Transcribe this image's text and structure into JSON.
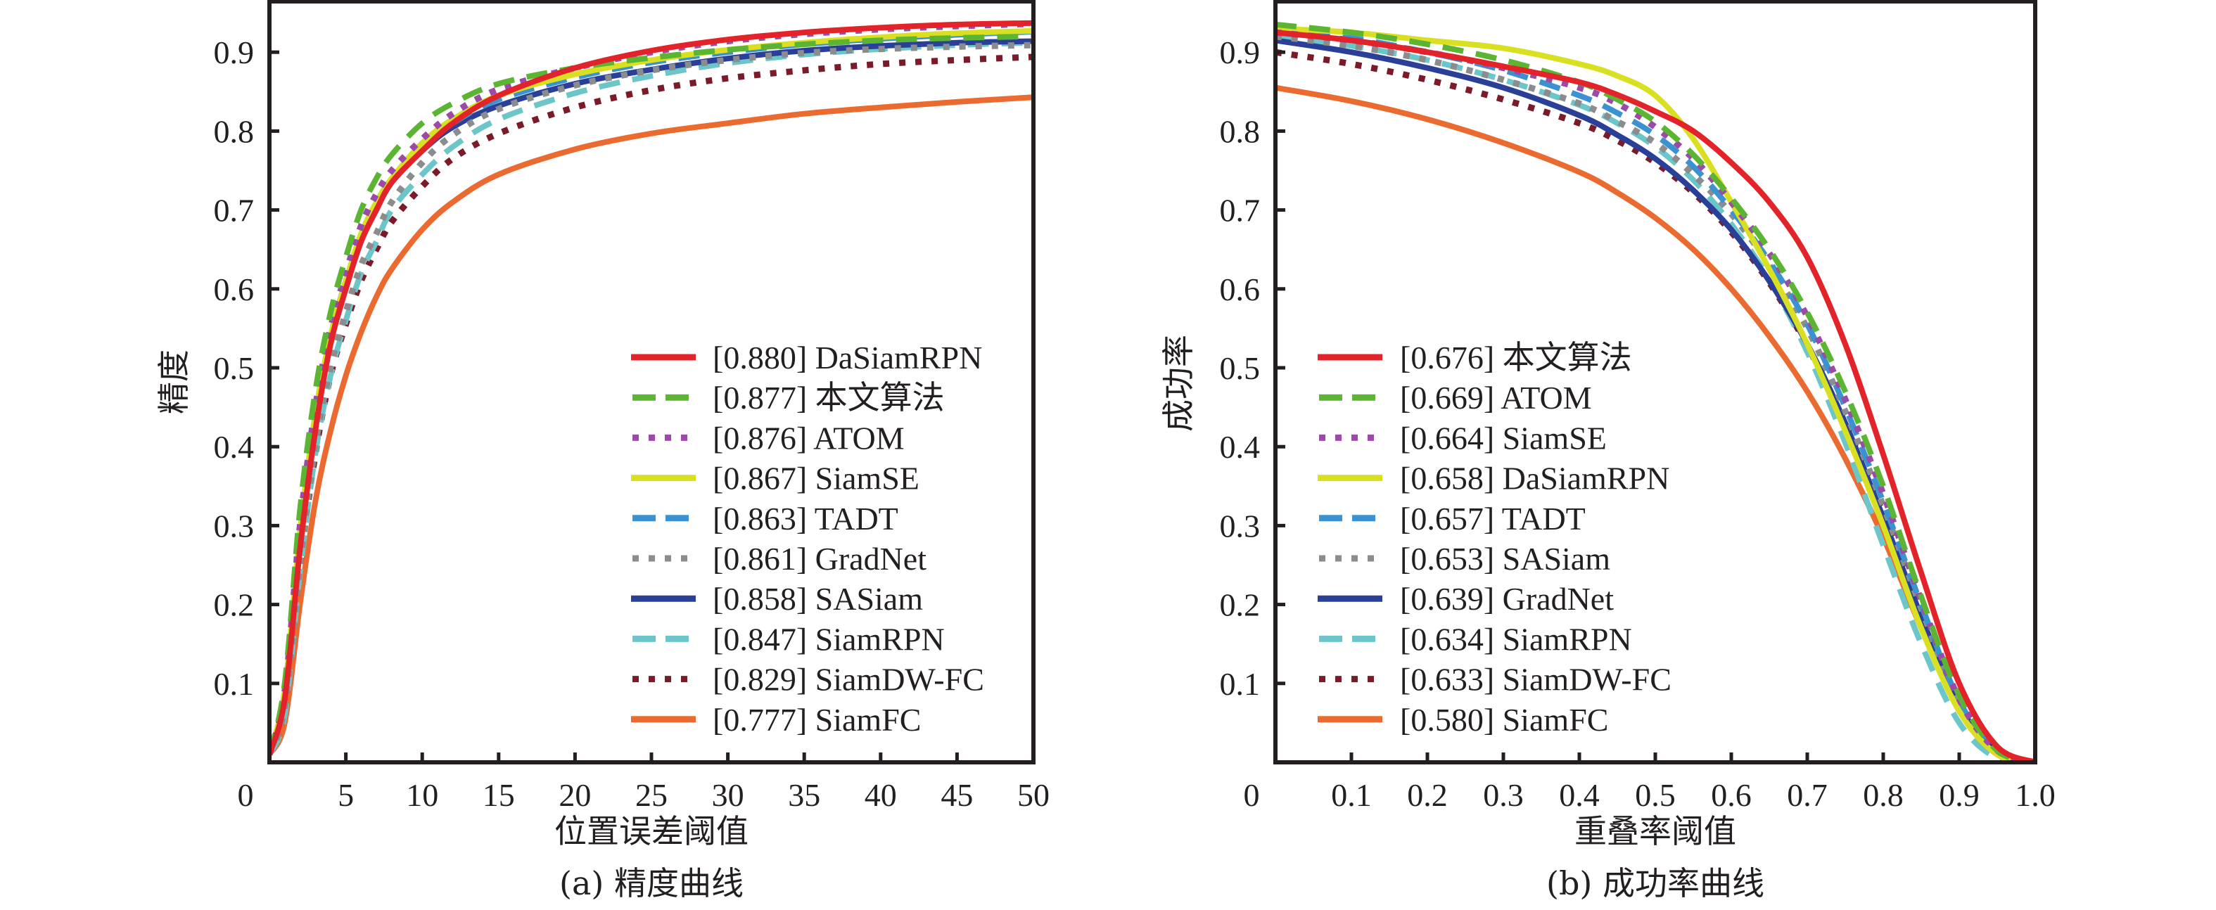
{
  "chart_data": [
    {
      "type": "line",
      "id": "precision",
      "caption": "(a) 精度曲线",
      "xlabel": "位置误差阈值",
      "ylabel": "精度",
      "xlim": [
        0,
        50
      ],
      "ylim": [
        0,
        0.965
      ],
      "xticks": [
        0,
        5,
        10,
        15,
        20,
        25,
        30,
        35,
        40,
        45,
        50
      ],
      "xtick_labels": [
        "0",
        "5",
        "10",
        "15",
        "20",
        "25",
        "30",
        "35",
        "40",
        "45",
        "50"
      ],
      "yticks": [
        0.1,
        0.2,
        0.3,
        0.4,
        0.5,
        0.6,
        0.7,
        0.8,
        0.9
      ],
      "ytick_labels": [
        "0.1",
        "0.2",
        "0.3",
        "0.4",
        "0.5",
        "0.6",
        "0.7",
        "0.8",
        "0.9"
      ],
      "grid": false,
      "legend_position": "bottom-right",
      "x": [
        0,
        1,
        2,
        3,
        4,
        5,
        6,
        7,
        8,
        10,
        12,
        15,
        20,
        25,
        30,
        35,
        40,
        45,
        50
      ],
      "series": [
        {
          "name": "DaSiamRPN",
          "score": "0.880",
          "color": "#e3232a",
          "style": "solid",
          "values": [
            0.01,
            0.08,
            0.27,
            0.42,
            0.53,
            0.6,
            0.66,
            0.7,
            0.735,
            0.775,
            0.81,
            0.845,
            0.88,
            0.902,
            0.916,
            0.925,
            0.931,
            0.935,
            0.937
          ]
        },
        {
          "name": "本文算法",
          "score": "0.877",
          "color": "#5bb533",
          "style": "dashed",
          "values": [
            0.01,
            0.1,
            0.32,
            0.47,
            0.57,
            0.64,
            0.7,
            0.74,
            0.77,
            0.81,
            0.835,
            0.86,
            0.88,
            0.893,
            0.903,
            0.91,
            0.915,
            0.918,
            0.92
          ]
        },
        {
          "name": "ATOM",
          "score": "0.876",
          "color": "#9b4aa8",
          "style": "dotted",
          "values": [
            0.01,
            0.09,
            0.3,
            0.45,
            0.55,
            0.62,
            0.68,
            0.72,
            0.75,
            0.79,
            0.822,
            0.853,
            0.88,
            0.9,
            0.914,
            0.923,
            0.929,
            0.933,
            0.936
          ]
        },
        {
          "name": "SiamSE",
          "score": "0.867",
          "color": "#d9e021",
          "style": "solid",
          "values": [
            0.01,
            0.09,
            0.29,
            0.44,
            0.54,
            0.61,
            0.67,
            0.71,
            0.74,
            0.785,
            0.815,
            0.845,
            0.872,
            0.89,
            0.903,
            0.912,
            0.919,
            0.924,
            0.927
          ]
        },
        {
          "name": "TADT",
          "score": "0.863",
          "color": "#3a93d0",
          "style": "dashed",
          "values": [
            0.01,
            0.085,
            0.28,
            0.43,
            0.53,
            0.6,
            0.66,
            0.7,
            0.735,
            0.78,
            0.81,
            0.84,
            0.868,
            0.887,
            0.9,
            0.91,
            0.917,
            0.922,
            0.926
          ]
        },
        {
          "name": "GradNet",
          "score": "0.861",
          "color": "#8a8c8e",
          "style": "dotted",
          "values": [
            0.01,
            0.07,
            0.25,
            0.4,
            0.5,
            0.57,
            0.63,
            0.67,
            0.71,
            0.76,
            0.795,
            0.828,
            0.858,
            0.877,
            0.89,
            0.899,
            0.904,
            0.907,
            0.909
          ]
        },
        {
          "name": "SASiam",
          "score": "0.858",
          "color": "#2a3f98",
          "style": "solid",
          "values": [
            0.01,
            0.09,
            0.29,
            0.44,
            0.54,
            0.61,
            0.665,
            0.705,
            0.735,
            0.775,
            0.805,
            0.832,
            0.86,
            0.878,
            0.892,
            0.902,
            0.908,
            0.912,
            0.914
          ]
        },
        {
          "name": "SiamRPN",
          "score": "0.847",
          "color": "#6cc6c9",
          "style": "dashed",
          "values": [
            0.01,
            0.06,
            0.24,
            0.39,
            0.49,
            0.56,
            0.62,
            0.66,
            0.7,
            0.745,
            0.78,
            0.815,
            0.848,
            0.87,
            0.886,
            0.897,
            0.904,
            0.909,
            0.912
          ]
        },
        {
          "name": "SiamDW-FC",
          "score": "0.829",
          "color": "#7b1b2a",
          "style": "dotted",
          "values": [
            0.01,
            0.07,
            0.25,
            0.39,
            0.49,
            0.555,
            0.61,
            0.65,
            0.685,
            0.73,
            0.765,
            0.797,
            0.83,
            0.852,
            0.867,
            0.877,
            0.885,
            0.89,
            0.894
          ]
        },
        {
          "name": "SiamFC",
          "score": "0.777",
          "color": "#ea6a30",
          "style": "solid",
          "values": [
            0.01,
            0.05,
            0.2,
            0.33,
            0.42,
            0.49,
            0.545,
            0.59,
            0.625,
            0.675,
            0.71,
            0.745,
            0.777,
            0.797,
            0.81,
            0.822,
            0.83,
            0.837,
            0.843
          ]
        }
      ]
    },
    {
      "type": "line",
      "id": "success",
      "caption": "(b) 成功率曲线",
      "xlabel": "重叠率阈值",
      "ylabel": "成功率",
      "xlim": [
        0,
        1.0
      ],
      "ylim": [
        0,
        0.965
      ],
      "xticks": [
        0,
        0.1,
        0.2,
        0.3,
        0.4,
        0.5,
        0.6,
        0.7,
        0.8,
        0.9,
        1.0
      ],
      "xtick_labels": [
        "0",
        "0.1",
        "0.2",
        "0.3",
        "0.4",
        "0.5",
        "0.6",
        "0.7",
        "0.8",
        "0.9",
        "1.0"
      ],
      "yticks": [
        0.1,
        0.2,
        0.3,
        0.4,
        0.5,
        0.6,
        0.7,
        0.8,
        0.9
      ],
      "ytick_labels": [
        "0.1",
        "0.2",
        "0.3",
        "0.4",
        "0.5",
        "0.6",
        "0.7",
        "0.8",
        "0.9"
      ],
      "grid": false,
      "legend_position": "bottom-left",
      "x": [
        0,
        0.1,
        0.2,
        0.3,
        0.4,
        0.45,
        0.5,
        0.55,
        0.6,
        0.65,
        0.7,
        0.75,
        0.8,
        0.85,
        0.9,
        0.95,
        1.0
      ],
      "series": [
        {
          "name": "本文算法",
          "score": "0.676",
          "color": "#e3232a",
          "style": "solid",
          "values": [
            0.925,
            0.915,
            0.9,
            0.882,
            0.862,
            0.846,
            0.825,
            0.8,
            0.76,
            0.71,
            0.64,
            0.53,
            0.39,
            0.24,
            0.1,
            0.02,
            0.0
          ]
        },
        {
          "name": "ATOM",
          "score": "0.669",
          "color": "#5bb533",
          "style": "dashed",
          "values": [
            0.935,
            0.925,
            0.91,
            0.89,
            0.862,
            0.84,
            0.812,
            0.77,
            0.715,
            0.65,
            0.57,
            0.47,
            0.35,
            0.21,
            0.085,
            0.015,
            0.0
          ]
        },
        {
          "name": "SiamSE",
          "score": "0.664",
          "color": "#9b4aa8",
          "style": "dotted",
          "values": [
            0.925,
            0.915,
            0.9,
            0.88,
            0.855,
            0.835,
            0.805,
            0.765,
            0.71,
            0.645,
            0.565,
            0.46,
            0.34,
            0.205,
            0.08,
            0.015,
            0.0
          ]
        },
        {
          "name": "DaSiamRPN",
          "score": "0.658",
          "color": "#d9e021",
          "style": "solid",
          "values": [
            0.93,
            0.925,
            0.915,
            0.905,
            0.885,
            0.87,
            0.845,
            0.79,
            0.71,
            0.625,
            0.53,
            0.42,
            0.3,
            0.17,
            0.065,
            0.01,
            0.0
          ]
        },
        {
          "name": "TADT",
          "score": "0.657",
          "color": "#3a93d0",
          "style": "dashed",
          "values": [
            0.93,
            0.918,
            0.9,
            0.877,
            0.845,
            0.823,
            0.795,
            0.755,
            0.7,
            0.635,
            0.555,
            0.45,
            0.33,
            0.2,
            0.078,
            0.015,
            0.0
          ]
        },
        {
          "name": "SASiam",
          "score": "0.653",
          "color": "#8a8c8e",
          "style": "dotted",
          "values": [
            0.92,
            0.908,
            0.89,
            0.865,
            0.835,
            0.812,
            0.785,
            0.745,
            0.695,
            0.63,
            0.55,
            0.445,
            0.325,
            0.195,
            0.075,
            0.015,
            0.0
          ]
        },
        {
          "name": "GradNet",
          "score": "0.639",
          "color": "#2a3f98",
          "style": "solid",
          "values": [
            0.915,
            0.9,
            0.88,
            0.855,
            0.82,
            0.795,
            0.765,
            0.725,
            0.675,
            0.61,
            0.53,
            0.43,
            0.31,
            0.185,
            0.072,
            0.015,
            0.0
          ]
        },
        {
          "name": "SiamRPN",
          "score": "0.634",
          "color": "#6cc6c9",
          "style": "dashed",
          "values": [
            0.92,
            0.908,
            0.89,
            0.865,
            0.833,
            0.81,
            0.78,
            0.738,
            0.682,
            0.612,
            0.52,
            0.405,
            0.275,
            0.15,
            0.05,
            0.005,
            0.0
          ]
        },
        {
          "name": "SiamDW-FC",
          "score": "0.633",
          "color": "#7b1b2a",
          "style": "dotted",
          "values": [
            0.9,
            0.885,
            0.865,
            0.84,
            0.81,
            0.788,
            0.76,
            0.722,
            0.672,
            0.608,
            0.528,
            0.43,
            0.315,
            0.19,
            0.075,
            0.015,
            0.0
          ]
        },
        {
          "name": "SiamFC",
          "score": "0.580",
          "color": "#ea6a30",
          "style": "solid",
          "values": [
            0.855,
            0.838,
            0.815,
            0.785,
            0.748,
            0.722,
            0.69,
            0.65,
            0.6,
            0.54,
            0.47,
            0.385,
            0.285,
            0.17,
            0.065,
            0.01,
            0.0
          ]
        }
      ]
    }
  ]
}
